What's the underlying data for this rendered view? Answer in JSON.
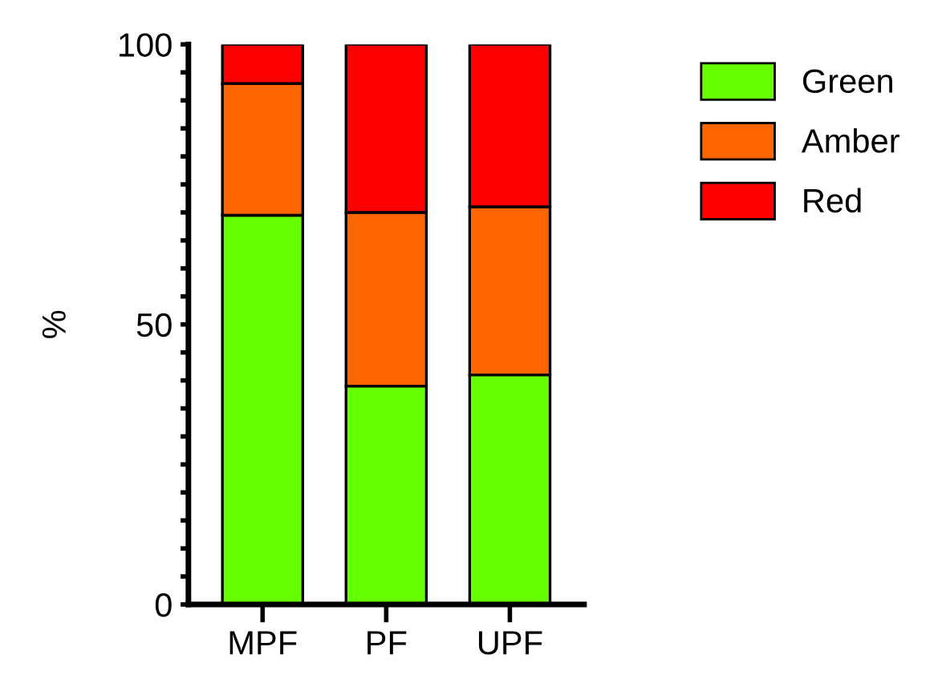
{
  "chart_data": {
    "type": "bar",
    "stacked": true,
    "ylabel": "%",
    "categories": [
      "MPF",
      "PF",
      "UPF"
    ],
    "series": [
      {
        "name": "Green",
        "color": "#66ff00",
        "values": [
          69.5,
          39,
          41
        ]
      },
      {
        "name": "Amber",
        "color": "#ff6600",
        "values": [
          23.5,
          31,
          30
        ]
      },
      {
        "name": "Red",
        "color": "#ff0000",
        "values": [
          7,
          30,
          29
        ]
      }
    ],
    "ylim": [
      0,
      100
    ],
    "yticks": [
      0,
      {
        "value": 5,
        "label": null
      },
      {
        "value": 10,
        "label": null
      },
      {
        "value": 15,
        "label": null
      },
      {
        "value": 20,
        "label": null
      },
      {
        "value": 25,
        "label": null
      },
      {
        "value": 30,
        "label": null
      },
      {
        "value": 35,
        "label": null
      },
      {
        "value": 40,
        "label": null
      },
      {
        "value": 45,
        "label": null
      },
      50,
      {
        "value": 55,
        "label": null
      },
      {
        "value": 60,
        "label": null
      },
      {
        "value": 65,
        "label": null
      },
      {
        "value": 70,
        "label": null
      },
      {
        "value": 75,
        "label": null
      },
      {
        "value": 80,
        "label": null
      },
      {
        "value": 85,
        "label": null
      },
      {
        "value": 90,
        "label": null
      },
      {
        "value": 95,
        "label": null
      },
      100
    ],
    "grid": false,
    "legend": "top right"
  }
}
